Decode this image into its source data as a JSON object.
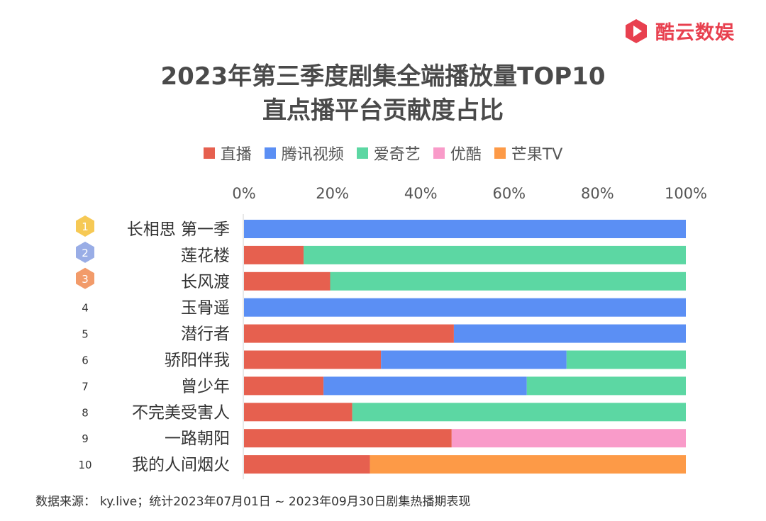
{
  "brand": {
    "name": "酷云数娱",
    "color": "#e8404f"
  },
  "title": {
    "line1": "2023年第三季度剧集全端播放量TOP10",
    "line2": "直点播平台贡献度占比"
  },
  "footer": {
    "source_label": "数据来源：",
    "source_text": "ky.live；统计2023年07月01日 ~ 2023年09月30日剧集热播期表现"
  },
  "chart_data": {
    "type": "bar",
    "orientation": "horizontal",
    "stacked": true,
    "percent": true,
    "xlim": [
      0,
      100
    ],
    "ticks": [
      {
        "value": 0,
        "label": "0%"
      },
      {
        "value": 20,
        "label": "20%"
      },
      {
        "value": 40,
        "label": "40%"
      },
      {
        "value": 60,
        "label": "60%"
      },
      {
        "value": 80,
        "label": "80%"
      },
      {
        "value": 100,
        "label": "100%"
      }
    ],
    "tick_position": "top",
    "legend_position": "top",
    "ranks": [
      "1",
      "2",
      "3",
      "4",
      "5",
      "6",
      "7",
      "8",
      "9",
      "10"
    ],
    "categories": [
      "长相思 第一季",
      "莲花楼",
      "长风渡",
      "玉骨遥",
      "潜行者",
      "骄阳伴我",
      "曾少年",
      "不完美受害人",
      "一路朝阳",
      "我的人间烟火"
    ],
    "series": [
      {
        "name": "直播",
        "color": "#e6604f",
        "values": [
          0,
          13.5,
          19.5,
          0,
          47.5,
          31,
          18,
          24.5,
          47,
          28.5
        ]
      },
      {
        "name": "腾讯视频",
        "color": "#5b8ff4",
        "values": [
          100,
          0,
          0,
          100,
          52.5,
          42,
          46,
          0,
          0,
          0
        ]
      },
      {
        "name": "爱奇艺",
        "color": "#5cd7a3",
        "values": [
          0,
          86.5,
          80.5,
          0,
          0,
          27,
          36,
          75.5,
          0,
          0
        ]
      },
      {
        "name": "优酷",
        "color": "#f99bc9",
        "values": [
          0,
          0,
          0,
          0,
          0,
          0,
          0,
          0,
          53,
          0
        ]
      },
      {
        "name": "芒果TV",
        "color": "#fd9a47",
        "values": [
          0,
          0,
          0,
          0,
          0,
          0,
          0,
          0,
          0,
          71.5
        ]
      }
    ],
    "badge_colors": [
      "#f5c342",
      "#8ea4e3",
      "#f1905a"
    ]
  }
}
